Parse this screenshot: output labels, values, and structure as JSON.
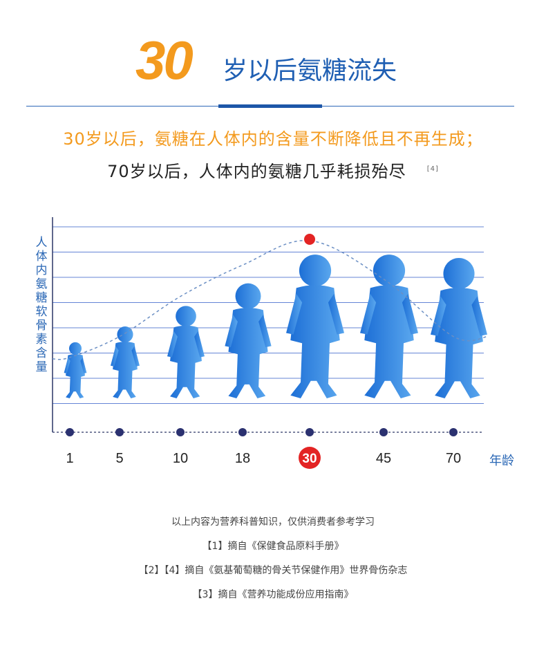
{
  "header": {
    "title_number": "30",
    "title_text": "岁以后氨糖流失",
    "subtitle_1": "30岁以后，氨糖在人体内的含量不断降低且不再生成；",
    "subtitle_2": "70岁以后，人体内的氨糖几乎耗损殆尽",
    "subtitle_2_ref": "[4]"
  },
  "chart_data": {
    "type": "line",
    "ylabel": "人体内氨糖软骨素含量",
    "xlabel": "年龄",
    "x": [
      "1",
      "5",
      "10",
      "18",
      "30",
      "45",
      "70"
    ],
    "series": [
      {
        "values": [
          0.33,
          0.45,
          0.68,
          0.86,
          1.0,
          0.78,
          0.45
        ]
      }
    ],
    "highlight": {
      "x": "30",
      "color": "#e32424"
    },
    "grid": true,
    "colors": {
      "curve": "#6b8fc4",
      "grid": "#4a6fd0",
      "axis": "#2a3566",
      "marker": "#2b3170",
      "silhouette_light": "#5aa7ee",
      "silhouette_dark": "#1d6fd6",
      "highlight": "#e32424"
    }
  },
  "notes": [
    "以上内容为营养科普知识，仅供消费者参考学习",
    "【1】摘自《保健食品原料手册》",
    "【2】【4】摘自《氨基葡萄糖的骨关节保健作用》世界骨伤杂志",
    "【3】摘自《营养功能成份应用指南》"
  ]
}
